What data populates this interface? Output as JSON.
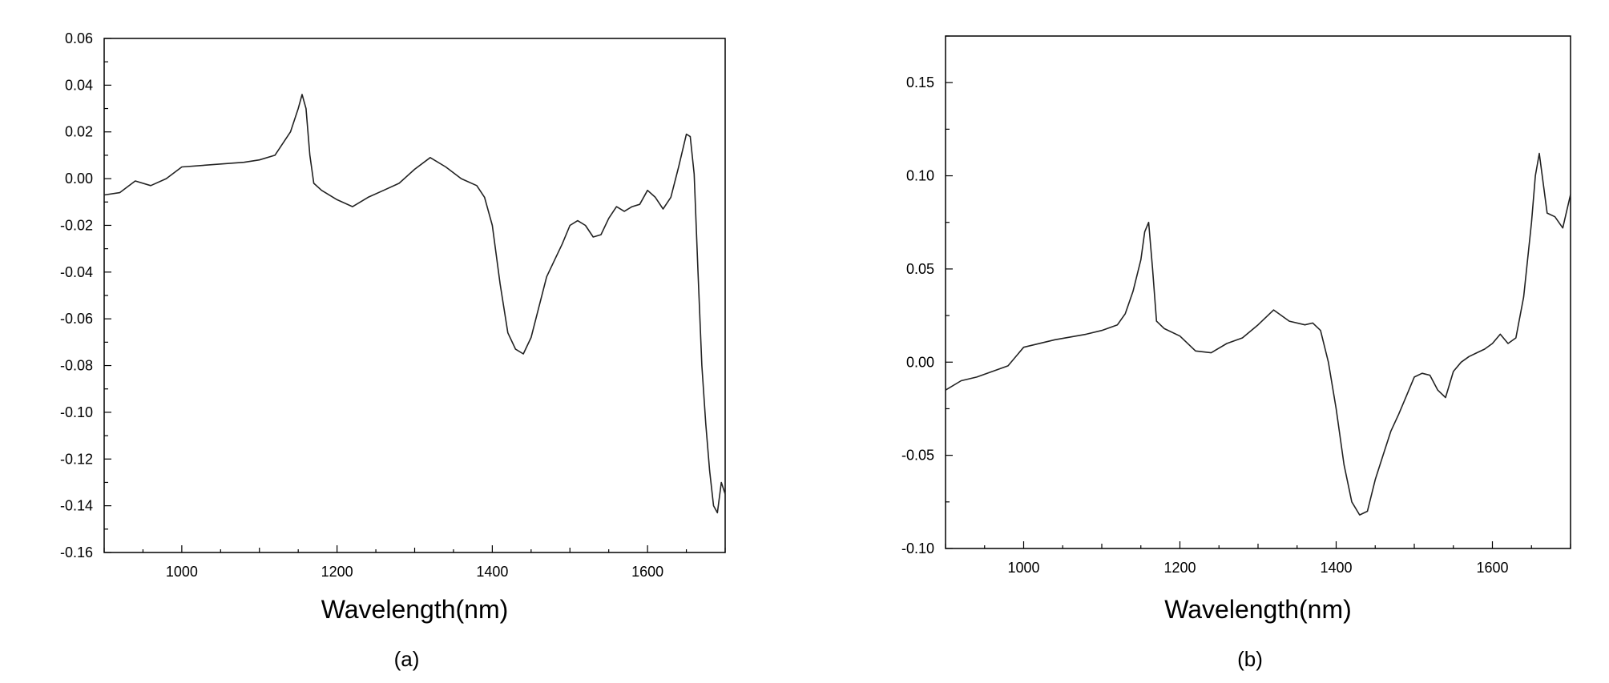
{
  "chart_data": [
    {
      "type": "line",
      "panel_label": "(a)",
      "xlabel": "Wavelength(nm)",
      "ylabel": "",
      "xlim": [
        900,
        1700
      ],
      "ylim": [
        -0.16,
        0.06
      ],
      "xticks": [
        1000,
        1200,
        1400,
        1600
      ],
      "yticks": [
        0.06,
        0.04,
        0.02,
        0.0,
        -0.02,
        -0.04,
        -0.06,
        -0.08,
        -0.1,
        -0.12,
        -0.14,
        -0.16
      ],
      "yticklabels": [
        "0.06",
        "0.04",
        "0.02",
        "0.00",
        "-0.02",
        "-0.04",
        "-0.06",
        "-0.08",
        "-0.10",
        "-0.12",
        "-0.14",
        "-0.16"
      ],
      "grid": false,
      "series": [
        {
          "x": [
            900,
            920,
            940,
            960,
            980,
            1000,
            1040,
            1080,
            1100,
            1120,
            1130,
            1140,
            1150,
            1155,
            1160,
            1165,
            1170,
            1180,
            1200,
            1220,
            1240,
            1260,
            1280,
            1300,
            1320,
            1340,
            1360,
            1380,
            1390,
            1400,
            1410,
            1420,
            1430,
            1440,
            1450,
            1460,
            1470,
            1480,
            1490,
            1500,
            1510,
            1520,
            1530,
            1540,
            1550,
            1560,
            1570,
            1580,
            1590,
            1600,
            1610,
            1620,
            1630,
            1640,
            1650,
            1655,
            1660,
            1665,
            1670,
            1675,
            1680,
            1685,
            1690,
            1695,
            1700
          ],
          "y": [
            -0.007,
            -0.006,
            -0.001,
            -0.003,
            0.0,
            0.005,
            0.006,
            0.007,
            0.008,
            0.01,
            0.015,
            0.02,
            0.03,
            0.036,
            0.03,
            0.01,
            -0.002,
            -0.005,
            -0.009,
            -0.012,
            -0.008,
            -0.005,
            -0.002,
            0.004,
            0.009,
            0.005,
            0.0,
            -0.003,
            -0.008,
            -0.02,
            -0.045,
            -0.066,
            -0.073,
            -0.075,
            -0.068,
            -0.055,
            -0.042,
            -0.035,
            -0.028,
            -0.02,
            -0.018,
            -0.02,
            -0.025,
            -0.024,
            -0.017,
            -0.012,
            -0.014,
            -0.012,
            -0.011,
            -0.005,
            -0.008,
            -0.013,
            -0.008,
            0.005,
            0.019,
            0.018,
            0.002,
            -0.04,
            -0.08,
            -0.105,
            -0.125,
            -0.14,
            -0.143,
            -0.13,
            -0.135
          ]
        }
      ]
    },
    {
      "type": "line",
      "panel_label": "(b)",
      "xlabel": "Wavelength(nm)",
      "ylabel": "",
      "xlim": [
        900,
        1700
      ],
      "ylim": [
        -0.1,
        0.175
      ],
      "xticks": [
        1000,
        1200,
        1400,
        1600
      ],
      "yticks": [
        0.15,
        0.1,
        0.05,
        0.0,
        -0.05,
        -0.1
      ],
      "yticklabels": [
        "0.15",
        "0.10",
        "0.05",
        "0.00",
        "-0.05",
        "-0.10"
      ],
      "grid": false,
      "series": [
        {
          "x": [
            900,
            920,
            940,
            960,
            980,
            1000,
            1040,
            1080,
            1100,
            1120,
            1130,
            1140,
            1150,
            1155,
            1160,
            1165,
            1170,
            1180,
            1200,
            1220,
            1240,
            1260,
            1280,
            1300,
            1320,
            1340,
            1360,
            1370,
            1380,
            1390,
            1400,
            1410,
            1420,
            1430,
            1440,
            1450,
            1460,
            1470,
            1480,
            1490,
            1500,
            1510,
            1520,
            1530,
            1540,
            1550,
            1560,
            1570,
            1580,
            1590,
            1600,
            1610,
            1620,
            1630,
            1640,
            1650,
            1655,
            1660,
            1670,
            1680,
            1690,
            1700
          ],
          "y": [
            -0.015,
            -0.01,
            -0.008,
            -0.005,
            -0.002,
            0.008,
            0.012,
            0.015,
            0.017,
            0.02,
            0.026,
            0.038,
            0.055,
            0.07,
            0.075,
            0.05,
            0.022,
            0.018,
            0.014,
            0.006,
            0.005,
            0.01,
            0.013,
            0.02,
            0.028,
            0.022,
            0.02,
            0.021,
            0.017,
            0.0,
            -0.025,
            -0.055,
            -0.075,
            -0.082,
            -0.08,
            -0.063,
            -0.05,
            -0.037,
            -0.028,
            -0.018,
            -0.008,
            -0.006,
            -0.007,
            -0.015,
            -0.019,
            -0.005,
            0.0,
            0.003,
            0.005,
            0.007,
            0.01,
            0.015,
            0.01,
            0.013,
            0.035,
            0.075,
            0.1,
            0.112,
            0.08,
            0.078,
            0.072,
            0.09
          ]
        }
      ]
    }
  ]
}
